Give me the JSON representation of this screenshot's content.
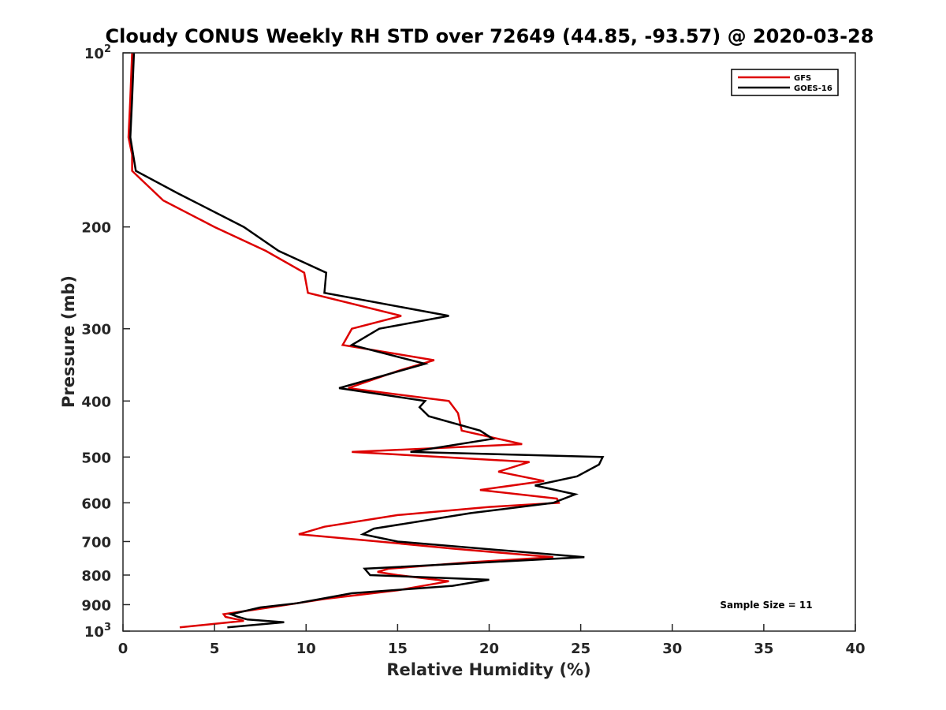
{
  "chart_data": {
    "type": "line",
    "title": "Cloudy CONUS Weekly RH STD over 72649 (44.85, -93.57) @ 2020-03-28",
    "xlabel": "Relative Humidity (%)",
    "ylabel": "Pressure (mb)",
    "xlim": [
      0,
      40
    ],
    "ylim": [
      100,
      1000
    ],
    "y_scale": "log",
    "y_reversed": true,
    "x_ticks": [
      0,
      5,
      10,
      15,
      20,
      25,
      30,
      35,
      40
    ],
    "x_tick_labels": [
      "0",
      "5",
      "10",
      "15",
      "20",
      "25",
      "30",
      "35",
      "40"
    ],
    "y_ticks": [
      {
        "value": 100,
        "base": "10",
        "sup": "2"
      },
      {
        "value": 200,
        "label": "200"
      },
      {
        "value": 300,
        "label": "300"
      },
      {
        "value": 400,
        "label": "400"
      },
      {
        "value": 500,
        "label": "500"
      },
      {
        "value": 600,
        "label": "600"
      },
      {
        "value": 700,
        "label": "700"
      },
      {
        "value": 800,
        "label": "800"
      },
      {
        "value": 900,
        "label": "900"
      },
      {
        "value": 1000,
        "base": "10",
        "sup": "3"
      }
    ],
    "legend_position": "top-right",
    "annotation": "Sample Size = 11",
    "series": [
      {
        "name": "GFS",
        "color": "#dd0000",
        "points": [
          {
            "x": 0.5,
            "y": 100
          },
          {
            "x": 0.4,
            "y": 120
          },
          {
            "x": 0.3,
            "y": 140
          },
          {
            "x": 0.5,
            "y": 150
          },
          {
            "x": 0.5,
            "y": 160
          },
          {
            "x": 2.2,
            "y": 180
          },
          {
            "x": 5.0,
            "y": 200
          },
          {
            "x": 7.8,
            "y": 220
          },
          {
            "x": 9.9,
            "y": 240
          },
          {
            "x": 10.1,
            "y": 260
          },
          {
            "x": 15.2,
            "y": 285
          },
          {
            "x": 12.5,
            "y": 300
          },
          {
            "x": 12.0,
            "y": 320
          },
          {
            "x": 17.0,
            "y": 340
          },
          {
            "x": 15.0,
            "y": 355
          },
          {
            "x": 12.3,
            "y": 380
          },
          {
            "x": 17.8,
            "y": 400
          },
          {
            "x": 18.3,
            "y": 420
          },
          {
            "x": 18.5,
            "y": 450
          },
          {
            "x": 21.8,
            "y": 475
          },
          {
            "x": 12.5,
            "y": 490
          },
          {
            "x": 22.2,
            "y": 510
          },
          {
            "x": 20.5,
            "y": 530
          },
          {
            "x": 23.0,
            "y": 550
          },
          {
            "x": 19.5,
            "y": 570
          },
          {
            "x": 23.7,
            "y": 590
          },
          {
            "x": 23.8,
            "y": 600
          },
          {
            "x": 20.0,
            "y": 610
          },
          {
            "x": 15.0,
            "y": 630
          },
          {
            "x": 11.0,
            "y": 660
          },
          {
            "x": 9.6,
            "y": 680
          },
          {
            "x": 14.0,
            "y": 700
          },
          {
            "x": 18.0,
            "y": 720
          },
          {
            "x": 23.5,
            "y": 745
          },
          {
            "x": 19.0,
            "y": 760
          },
          {
            "x": 14.5,
            "y": 780
          },
          {
            "x": 13.9,
            "y": 790
          },
          {
            "x": 15.0,
            "y": 800
          },
          {
            "x": 17.8,
            "y": 820
          },
          {
            "x": 15.0,
            "y": 850
          },
          {
            "x": 11.0,
            "y": 880
          },
          {
            "x": 8.0,
            "y": 910
          },
          {
            "x": 5.5,
            "y": 935
          },
          {
            "x": 5.6,
            "y": 945
          },
          {
            "x": 6.6,
            "y": 960
          },
          {
            "x": 3.1,
            "y": 985
          }
        ]
      },
      {
        "name": "GOES-16",
        "color": "#000000",
        "points": [
          {
            "x": 0.6,
            "y": 100
          },
          {
            "x": 0.5,
            "y": 120
          },
          {
            "x": 0.4,
            "y": 140
          },
          {
            "x": 0.7,
            "y": 160
          },
          {
            "x": 3.0,
            "y": 175
          },
          {
            "x": 6.6,
            "y": 200
          },
          {
            "x": 8.5,
            "y": 220
          },
          {
            "x": 11.1,
            "y": 240
          },
          {
            "x": 11.0,
            "y": 260
          },
          {
            "x": 17.8,
            "y": 285
          },
          {
            "x": 14.0,
            "y": 300
          },
          {
            "x": 12.5,
            "y": 320
          },
          {
            "x": 16.5,
            "y": 345
          },
          {
            "x": 11.8,
            "y": 380
          },
          {
            "x": 16.5,
            "y": 400
          },
          {
            "x": 16.2,
            "y": 410
          },
          {
            "x": 16.7,
            "y": 425
          },
          {
            "x": 19.5,
            "y": 450
          },
          {
            "x": 20.2,
            "y": 465
          },
          {
            "x": 15.7,
            "y": 490
          },
          {
            "x": 26.2,
            "y": 500
          },
          {
            "x": 26.0,
            "y": 515
          },
          {
            "x": 24.8,
            "y": 540
          },
          {
            "x": 22.5,
            "y": 560
          },
          {
            "x": 24.7,
            "y": 580
          },
          {
            "x": 23.5,
            "y": 600
          },
          {
            "x": 19.0,
            "y": 625
          },
          {
            "x": 17.0,
            "y": 640
          },
          {
            "x": 13.7,
            "y": 665
          },
          {
            "x": 13.1,
            "y": 680
          },
          {
            "x": 15.0,
            "y": 700
          },
          {
            "x": 25.2,
            "y": 745
          },
          {
            "x": 20.0,
            "y": 760
          },
          {
            "x": 13.2,
            "y": 780
          },
          {
            "x": 13.5,
            "y": 800
          },
          {
            "x": 20.0,
            "y": 815
          },
          {
            "x": 18.0,
            "y": 835
          },
          {
            "x": 12.5,
            "y": 860
          },
          {
            "x": 9.5,
            "y": 895
          },
          {
            "x": 7.5,
            "y": 910
          },
          {
            "x": 5.9,
            "y": 935
          },
          {
            "x": 6.3,
            "y": 945
          },
          {
            "x": 6.8,
            "y": 955
          },
          {
            "x": 8.8,
            "y": 965
          },
          {
            "x": 5.7,
            "y": 985
          }
        ]
      }
    ]
  }
}
